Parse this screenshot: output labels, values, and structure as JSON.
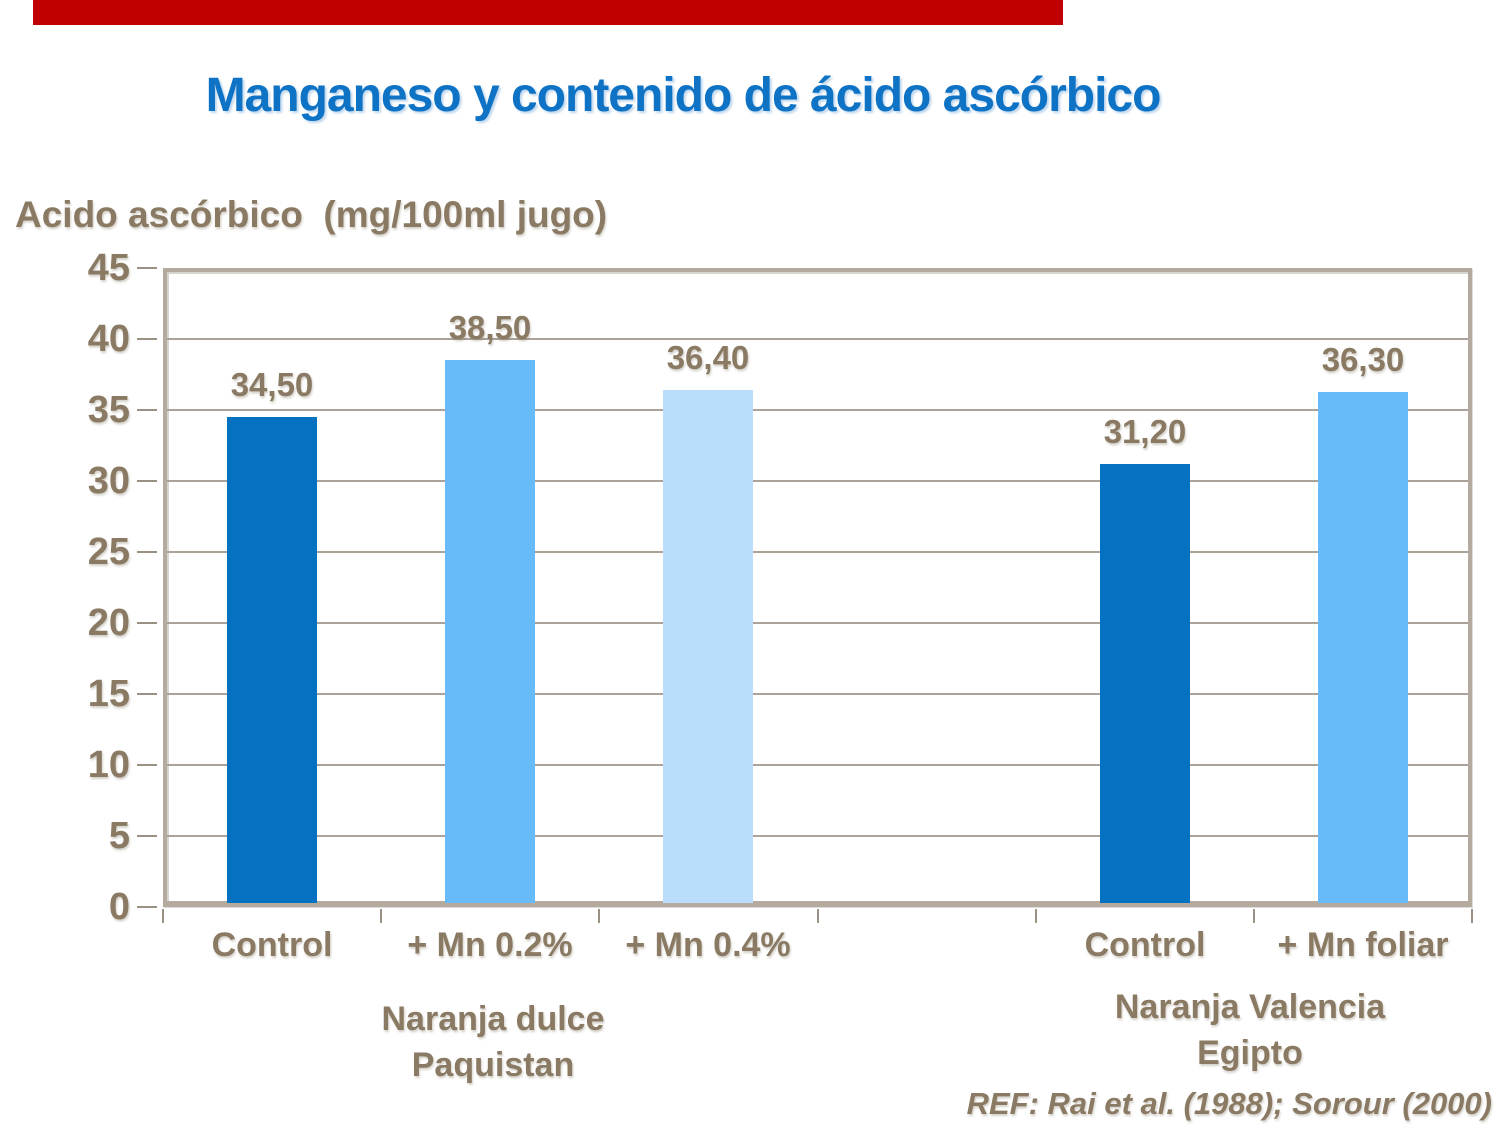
{
  "slide": {
    "title": "Manganeso y contenido de ácido ascórbico",
    "accent_bar_color": "#C00000",
    "footnote": "REF: Rai et al. (1988);  Sorour (2000)"
  },
  "chart_data": {
    "type": "bar",
    "title": "Manganeso y contenido de ácido ascórbico",
    "ylabel": "Acido ascórbico  (mg/100ml jugo)",
    "xlabel": "",
    "ylim": [
      0,
      45
    ],
    "yticks": [
      0,
      5,
      10,
      15,
      20,
      25,
      30,
      35,
      40,
      45
    ],
    "grid": true,
    "legend": null,
    "slot_count": 6,
    "bars": [
      {
        "slot": 0,
        "category": "Control",
        "value": 34.5,
        "value_label": "34,50",
        "color": "#0572C1"
      },
      {
        "slot": 1,
        "category": "+ Mn 0.2%",
        "value": 38.5,
        "value_label": "38,50",
        "color": "#67BBF8"
      },
      {
        "slot": 2,
        "category": "+ Mn 0.4%",
        "value": 36.4,
        "value_label": "36,40",
        "color": "#B9DDFB"
      },
      {
        "slot": 4,
        "category": "Control",
        "value": 31.2,
        "value_label": "31,20",
        "color": "#0572C1"
      },
      {
        "slot": 5,
        "category": "+ Mn foliar",
        "value": 36.3,
        "value_label": "36,30",
        "color": "#67BBF8"
      }
    ],
    "groups": [
      {
        "lines": [
          "Naranja dulce",
          "Paquistan"
        ]
      },
      {
        "lines": [
          "Naranja Valencia",
          "Egipto"
        ]
      }
    ],
    "colors": {
      "title_blue": "#0E72C5",
      "text_brown": "#8A7A63",
      "frame_tan": "#B5AA9E",
      "gridline": "#ABA29A",
      "bar_dark_blue": "#0572C1",
      "bar_medium_blue": "#67BBF8",
      "bar_light_blue": "#B9DDFB"
    }
  }
}
